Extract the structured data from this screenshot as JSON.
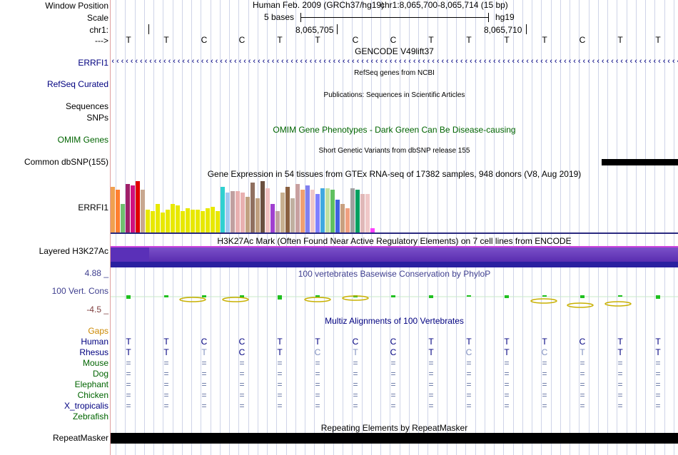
{
  "labels": {
    "window_position": "Window Position",
    "scale": "Scale",
    "chr": "chr1:",
    "arrow": "--->",
    "errfi1_gene": "ERRFI1",
    "refseq": "RefSeq Curated",
    "sequences": "Sequences",
    "snps": "SNPs",
    "omim": "OMIM Genes",
    "dbsnp": "Common dbSNP(155)",
    "errfi1_gtex": "ERRFI1",
    "h3k27ac": "Layered H3K27Ac",
    "cons_max": "4.88 _",
    "cons_label": "100 Vert. Cons",
    "cons_min": "-4.5 _",
    "gaps": "Gaps",
    "repeatmasker": "RepeatMasker"
  },
  "header": {
    "assembly": "Human Feb. 2009 (GRCh37/hg19)",
    "position": "chr1:8,065,700-8,065,714 (15 bp)",
    "scale_text": "5 bases",
    "db": "hg19",
    "pos1": "8,065,705",
    "pos2": "8,065,710"
  },
  "bases": [
    "T",
    "T",
    "C",
    "C",
    "T",
    "T",
    "C",
    "C",
    "T",
    "T",
    "T",
    "T",
    "C",
    "T",
    "T"
  ],
  "tracks": {
    "gencode": "GENCODE V49lift37",
    "refseq": "RefSeq genes from NCBI",
    "publications": "Publications: Sequences in Scientific Articles",
    "omim": "OMIM Gene Phenotypes - Dark Green Can Be Disease-causing",
    "dbsnp": "Short Genetic Variants from dbSNP release 155",
    "gtex": "Gene Expression in 54 tissues from GTEx RNA-seq of 17382 samples, 948 donors (V8, Aug 2019)",
    "h3k27ac": "H3K27Ac Mark (Often Found Near Active Regulatory Elements) on 7 cell lines from ENCODE",
    "phylop": "100 vertebrates Basewise Conservation by PhyloP",
    "multiz": "Multiz Alignments of 100 Vertebrates",
    "repeatmasker": "Repeating Elements by RepeatMasker"
  },
  "species": [
    {
      "name": "Human",
      "color": "#000080",
      "seq": [
        "T",
        "T",
        "C",
        "C",
        "T",
        "T",
        "C",
        "C",
        "T",
        "T",
        "T",
        "T",
        "C",
        "T",
        "T"
      ]
    },
    {
      "name": "Rhesus",
      "color": "#000080",
      "seq": [
        "T",
        "T",
        "T",
        "C",
        "T",
        "C",
        "T",
        "C",
        "T",
        "C",
        "T",
        "C",
        "T",
        "T",
        "T"
      ]
    },
    {
      "name": "Mouse",
      "color": "#006400",
      "seq": [
        "=",
        "=",
        "=",
        "=",
        "=",
        "=",
        "=",
        "=",
        "=",
        "=",
        "=",
        "=",
        "=",
        "=",
        "="
      ]
    },
    {
      "name": "Dog",
      "color": "#006400",
      "seq": [
        "=",
        "=",
        "=",
        "=",
        "=",
        "=",
        "=",
        "=",
        "=",
        "=",
        "=",
        "=",
        "=",
        "=",
        "="
      ]
    },
    {
      "name": "Elephant",
      "color": "#006400",
      "seq": [
        "=",
        "=",
        "=",
        "=",
        "=",
        "=",
        "=",
        "=",
        "=",
        "=",
        "=",
        "=",
        "=",
        "=",
        "="
      ]
    },
    {
      "name": "Chicken",
      "color": "#006400",
      "seq": [
        "=",
        "=",
        "=",
        "=",
        "=",
        "=",
        "=",
        "=",
        "=",
        "=",
        "=",
        "=",
        "=",
        "=",
        "="
      ]
    },
    {
      "name": "X_tropicalis",
      "color": "#000080",
      "seq": [
        "=",
        "=",
        "=",
        "=",
        "=",
        "=",
        "=",
        "=",
        "=",
        "=",
        "=",
        "=",
        "=",
        "=",
        "="
      ]
    },
    {
      "name": "Zebrafish",
      "color": "#006400",
      "seq": []
    }
  ],
  "colors": {
    "navy": "#000080",
    "darkgreen": "#006400",
    "gaps": "#cc8800",
    "cons": "#404090",
    "h3k_dark": "#5a2db0",
    "h3k_light": "#9070d0"
  }
}
